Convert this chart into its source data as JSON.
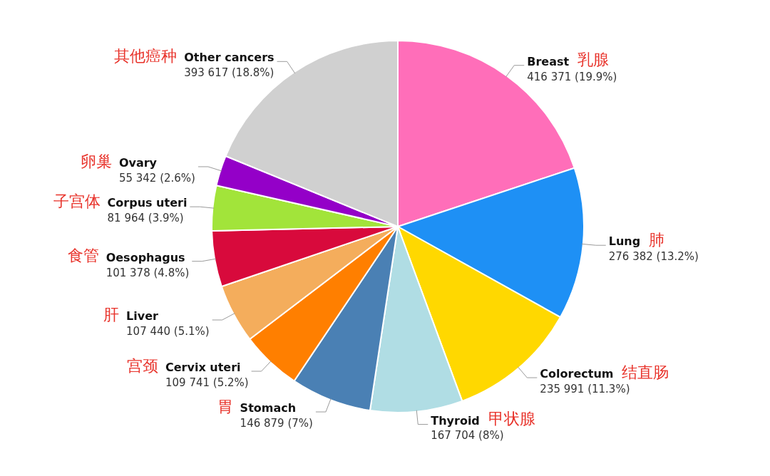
{
  "chart_data": {
    "type": "pie",
    "categories": [
      "Breast",
      "Lung",
      "Colorectum",
      "Thyroid",
      "Stomach",
      "Cervix uteri",
      "Liver",
      "Oesophagus",
      "Corpus uteri",
      "Ovary",
      "Other cancers"
    ],
    "values": [
      416371,
      276382,
      235991,
      167704,
      146879,
      109741,
      107440,
      101378,
      81964,
      55342,
      393617
    ],
    "colors": [
      "#ff6eb9",
      "#1e90f5",
      "#ffd800",
      "#b0dde4",
      "#4a80b4",
      "#ff7f00",
      "#f4ad5c",
      "#d80a3c",
      "#a2e43a",
      "#9400c8",
      "#d0d0d0"
    ],
    "value_labels": [
      "416 371 (19.9%)",
      "276 382 (13.2%)",
      "235 991 (11.3%)",
      "167 704 (8%)",
      "146 879 (7%)",
      "109 741 (5.2%)",
      "107 440 (5.1%)",
      "101 378 (4.8%)",
      "81 964 (3.9%)",
      "55 342 (2.6%)",
      "393 617 (18.8%)"
    ],
    "annotations": [
      {
        "text": "乳腺",
        "x": "Breast"
      },
      {
        "text": "肺",
        "x": "Lung"
      },
      {
        "text": "结直肠",
        "x": "Colorectum"
      },
      {
        "text": "甲状腺",
        "x": "Thyroid"
      },
      {
        "text": "胃",
        "x": "Stomach"
      },
      {
        "text": "宫颈",
        "x": "Cervix uteri"
      },
      {
        "text": "肝",
        "x": "Liver"
      },
      {
        "text": "食管",
        "x": "Oesophagus"
      },
      {
        "text": "子宫体",
        "x": "Corpus uteri"
      },
      {
        "text": "卵巢",
        "x": "Ovary"
      },
      {
        "text": "其他癌种",
        "x": "Other cancers"
      }
    ]
  }
}
